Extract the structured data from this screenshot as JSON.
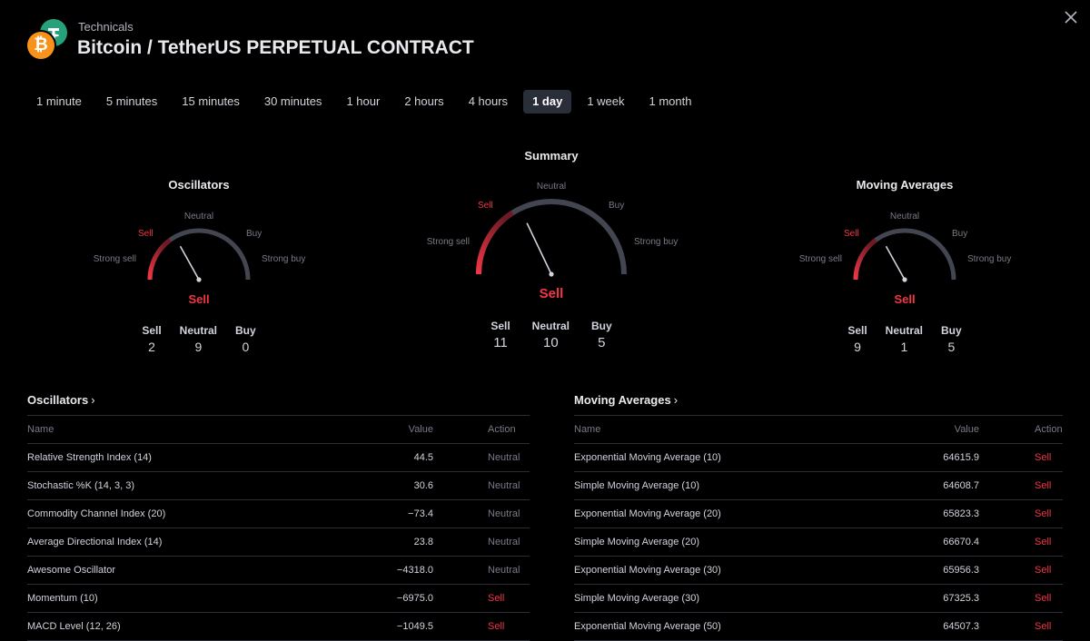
{
  "header": {
    "overline": "Technicals",
    "title": "Bitcoin / TetherUS PERPETUAL CONTRACT",
    "btc_glyph": "₿"
  },
  "timeframes": [
    {
      "label": "1 minute"
    },
    {
      "label": "5 minutes"
    },
    {
      "label": "15 minutes"
    },
    {
      "label": "30 minutes"
    },
    {
      "label": "1 hour"
    },
    {
      "label": "2 hours"
    },
    {
      "label": "4 hours"
    },
    {
      "label": "1 day",
      "active": true
    },
    {
      "label": "1 week"
    },
    {
      "label": "1 month"
    }
  ],
  "gauges": {
    "oscillators": {
      "title": "Oscillators",
      "result": "Sell",
      "needle_level": 0.3,
      "labels": {
        "strong_sell": "Strong sell",
        "sell": "Sell",
        "neutral": "Neutral",
        "buy": "Buy",
        "strong_buy": "Strong buy"
      },
      "counts": [
        {
          "label": "Sell",
          "value": "2"
        },
        {
          "label": "Neutral",
          "value": "9"
        },
        {
          "label": "Buy",
          "value": "0"
        }
      ]
    },
    "summary": {
      "title": "Summary",
      "result": "Sell",
      "needle_level": 0.32,
      "labels": {
        "strong_sell": "Strong sell",
        "sell": "Sell",
        "neutral": "Neutral",
        "buy": "Buy",
        "strong_buy": "Strong buy"
      },
      "counts": [
        {
          "label": "Sell",
          "value": "11"
        },
        {
          "label": "Neutral",
          "value": "10"
        },
        {
          "label": "Buy",
          "value": "5"
        }
      ]
    },
    "moving_averages": {
      "title": "Moving Averages",
      "result": "Sell",
      "needle_level": 0.3,
      "labels": {
        "strong_sell": "Strong sell",
        "sell": "Sell",
        "neutral": "Neutral",
        "buy": "Buy",
        "strong_buy": "Strong buy"
      },
      "counts": [
        {
          "label": "Sell",
          "value": "9"
        },
        {
          "label": "Neutral",
          "value": "1"
        },
        {
          "label": "Buy",
          "value": "5"
        }
      ]
    }
  },
  "colors": {
    "sell": "#f23645",
    "track": "#434651",
    "arc_sell": "#f23645"
  },
  "oscillators_table": {
    "title": "Oscillators",
    "columns": {
      "name": "Name",
      "value": "Value",
      "action": "Action"
    },
    "rows": [
      {
        "name": "Relative Strength Index (14)",
        "value": "44.5",
        "action": "Neutral"
      },
      {
        "name": "Stochastic %K (14, 3, 3)",
        "value": "30.6",
        "action": "Neutral"
      },
      {
        "name": "Commodity Channel Index (20)",
        "value": "−73.4",
        "action": "Neutral"
      },
      {
        "name": "Average Directional Index (14)",
        "value": "23.8",
        "action": "Neutral"
      },
      {
        "name": "Awesome Oscillator",
        "value": "−4318.0",
        "action": "Neutral"
      },
      {
        "name": "Momentum (10)",
        "value": "−6975.0",
        "action": "Sell"
      },
      {
        "name": "MACD Level (12, 26)",
        "value": "−1049.5",
        "action": "Sell"
      }
    ]
  },
  "ma_table": {
    "title": "Moving Averages",
    "columns": {
      "name": "Name",
      "value": "Value",
      "action": "Action"
    },
    "rows": [
      {
        "name": "Exponential Moving Average (10)",
        "value": "64615.9",
        "action": "Sell"
      },
      {
        "name": "Simple Moving Average (10)",
        "value": "64608.7",
        "action": "Sell"
      },
      {
        "name": "Exponential Moving Average (20)",
        "value": "65823.3",
        "action": "Sell"
      },
      {
        "name": "Simple Moving Average (20)",
        "value": "66670.4",
        "action": "Sell"
      },
      {
        "name": "Exponential Moving Average (30)",
        "value": "65956.3",
        "action": "Sell"
      },
      {
        "name": "Simple Moving Average (30)",
        "value": "67325.3",
        "action": "Sell"
      },
      {
        "name": "Exponential Moving Average (50)",
        "value": "64507.3",
        "action": "Sell"
      }
    ]
  }
}
